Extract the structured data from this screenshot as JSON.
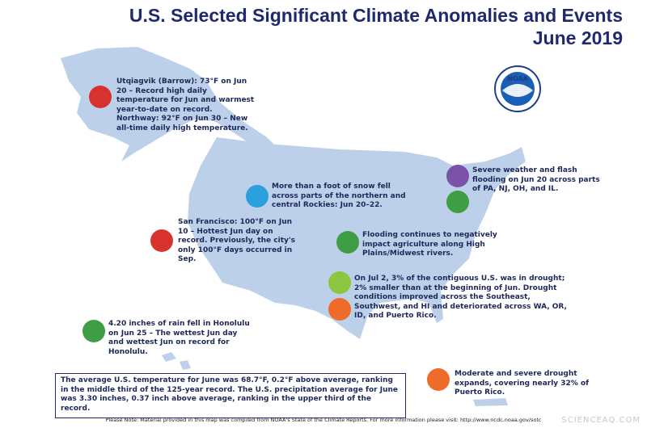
{
  "header": {
    "title": "U.S. Selected Significant Climate Anomalies and Events",
    "subtitle": "June 2019"
  },
  "logo": {
    "label": "NOAA"
  },
  "annotations": [
    {
      "text": "Utqiagvik (Barrow): 73°F on Jun 20 – Record high daily temperature for Jun and warmest year-to-date on record. Northway: 92°F on Jun 30 – New all-time daily high temperature."
    },
    {
      "text": "More than a foot of snow fell across parts of the northern and central Rockies: Jun 20–22."
    },
    {
      "text": "Severe weather and flash flooding on Jun 20 across parts of PA, NJ, OH, and IL."
    },
    {
      "text": "San Francisco: 100°F on Jun 10 – Hottest Jun day on record. Previously, the city's only 100°F days occurred in Sep."
    },
    {
      "text": "Flooding continues to negatively impact agriculture along High Plains/Midwest rivers."
    },
    {
      "text": "On Jul 2, 3% of the contiguous U.S. was in drought; 2% smaller than at the beginning of Jun. Drought conditions improved across the Southeast, Southwest, and HI and deteriorated across WA, OR, ID, and Puerto Rico."
    },
    {
      "text": "4.20 inches of rain fell in Honolulu on Jun 25 – The wettest Jun day and wettest Jun on record for Honolulu."
    },
    {
      "text": "Moderate and severe drought expands, covering nearly 32% of Puerto Rico."
    }
  ],
  "summary": {
    "text": "The average U.S. temperature for June was 68.7°F, 0.2°F above average, ranking in the middle third of the 125-year record. The U.S. precipitation average for June was 3.30 inches, 0.37 inch above average, ranking in the upper third of the record."
  },
  "footer": {
    "note": "Please Note: Material provided in this map was compiled from NOAA's State of the Climate Reports. For more information please visit: http://www.ncdc.noaa.gov/sotc"
  },
  "watermark": {
    "text": "SCIENCEAQ.COM"
  }
}
